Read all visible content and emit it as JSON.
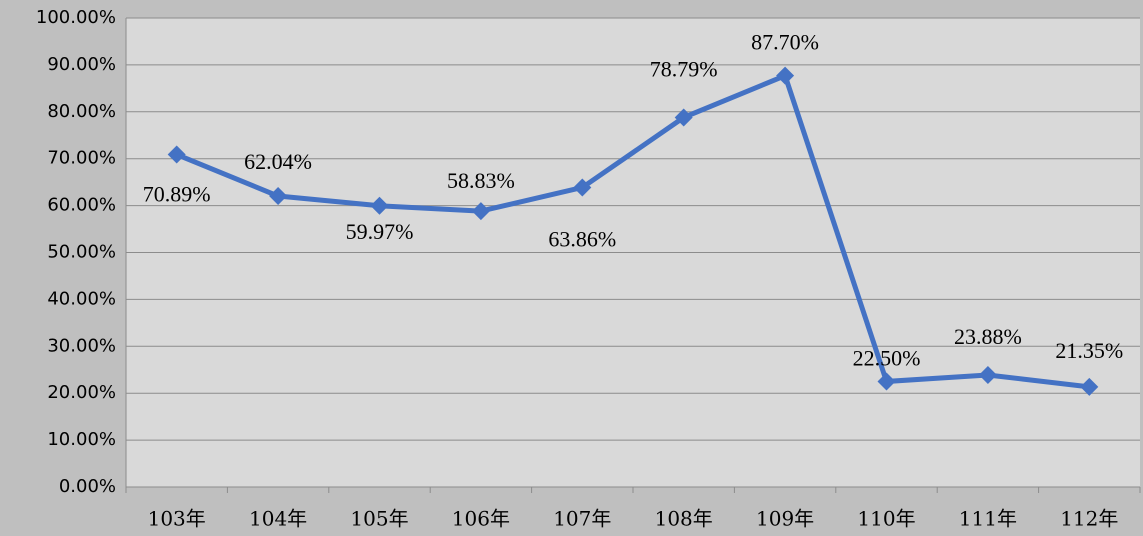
{
  "chart_data": {
    "type": "line",
    "categories": [
      "103年",
      "104年",
      "105年",
      "106年",
      "107年",
      "108年",
      "109年",
      "110年",
      "111年",
      "112年"
    ],
    "series": [
      {
        "color": "#4472c4",
        "values": [
          70.89,
          62.04,
          59.97,
          58.83,
          63.86,
          78.79,
          87.7,
          22.5,
          23.88,
          21.35
        ],
        "value_labels": [
          "70.89%",
          "62.04%",
          "59.97%",
          "58.83%",
          "63.86%",
          "78.79%",
          "87.70%",
          "22.50%",
          "23.88%",
          "21.35%"
        ]
      }
    ],
    "ylim": [
      0,
      100
    ],
    "yticks": [
      {
        "value": 0,
        "label": "0.00%"
      },
      {
        "value": 10,
        "label": "10.00%"
      },
      {
        "value": 20,
        "label": "20.00%"
      },
      {
        "value": 30,
        "label": "30.00%"
      },
      {
        "value": 40,
        "label": "40.00%"
      },
      {
        "value": 50,
        "label": "50.00%"
      },
      {
        "value": 60,
        "label": "60.00%"
      },
      {
        "value": 70,
        "label": "70.00%"
      },
      {
        "value": 80,
        "label": "80.00%"
      },
      {
        "value": 90,
        "label": "90.00%"
      },
      {
        "value": 100,
        "label": "100.00%"
      }
    ],
    "grid": true
  }
}
